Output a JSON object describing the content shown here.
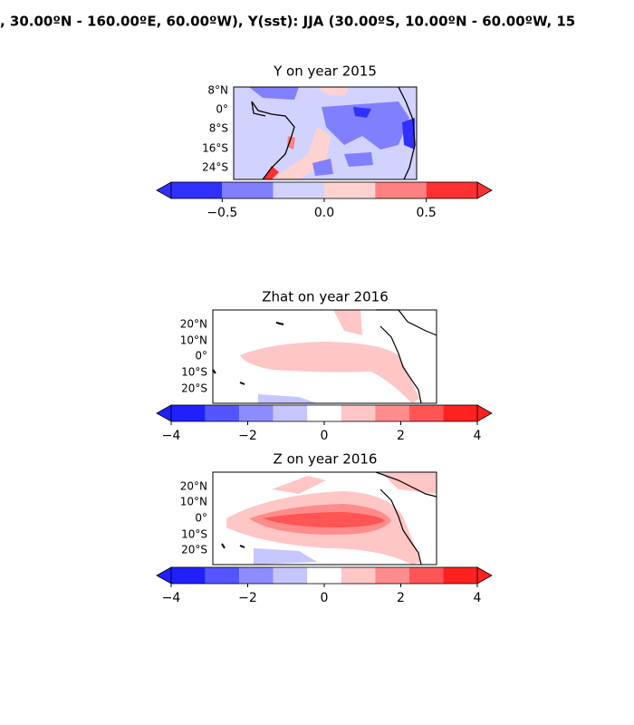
{
  "suptitle": ", 30.00ºN - 160.00ºE, 60.00ºW), Y(sst): JJA (30.00ºS, 10.00ºN - 60.00ºW, 15",
  "panels": [
    {
      "title": "Y on year 2015",
      "lat_labels": [
        "8°N",
        "0°",
        "8°S",
        "16°S",
        "24°S"
      ],
      "colorbar": {
        "levels": [
          -0.75,
          -0.5,
          -0.25,
          0,
          0.25,
          0.5,
          0.75
        ],
        "colors": [
          "#3030ff",
          "#8080ff",
          "#d2d2ff",
          "#ffd2d2",
          "#ff8080",
          "#ff3030"
        ],
        "ticks": [
          {
            "value": -0.5,
            "label": "−0.5"
          },
          {
            "value": 0,
            "label": "0.0"
          },
          0.5
        ]
      }
    },
    {
      "title": "Zhat on year 2016",
      "lat_labels": [
        "20°N",
        "10°N",
        "0°",
        "10°S",
        "20°S"
      ],
      "colorbar": {
        "levels": [
          -4,
          -3.111,
          -2.222,
          -1.333,
          -0.444,
          0.444,
          1.333,
          2.222,
          3.111,
          4
        ],
        "colors": [
          "#2020ff",
          "#5555ff",
          "#8c8cff",
          "#c6c6ff",
          "#ffffff",
          "#ffc6c6",
          "#ff8c8c",
          "#ff5555",
          "#ff2020"
        ],
        "ticks": [
          {
            "value": -4,
            "label": "−4"
          },
          {
            "value": -2,
            "label": "−2"
          },
          0,
          2,
          4
        ]
      }
    },
    {
      "title": "Z on year 2016",
      "lat_labels": [
        "20°N",
        "10°N",
        "0°",
        "10°S",
        "20°S"
      ],
      "colorbar": {
        "levels": [
          -4,
          -3.111,
          -2.222,
          -1.333,
          -0.444,
          0.444,
          1.333,
          2.222,
          3.111,
          4
        ],
        "colors": [
          "#2020ff",
          "#5555ff",
          "#8c8cff",
          "#c6c6ff",
          "#ffffff",
          "#ffc6c6",
          "#ff8c8c",
          "#ff5555",
          "#ff2020"
        ],
        "ticks": [
          {
            "value": -4,
            "label": "−4"
          },
          {
            "value": -2,
            "label": "−2"
          },
          0,
          2,
          4
        ]
      }
    }
  ]
}
